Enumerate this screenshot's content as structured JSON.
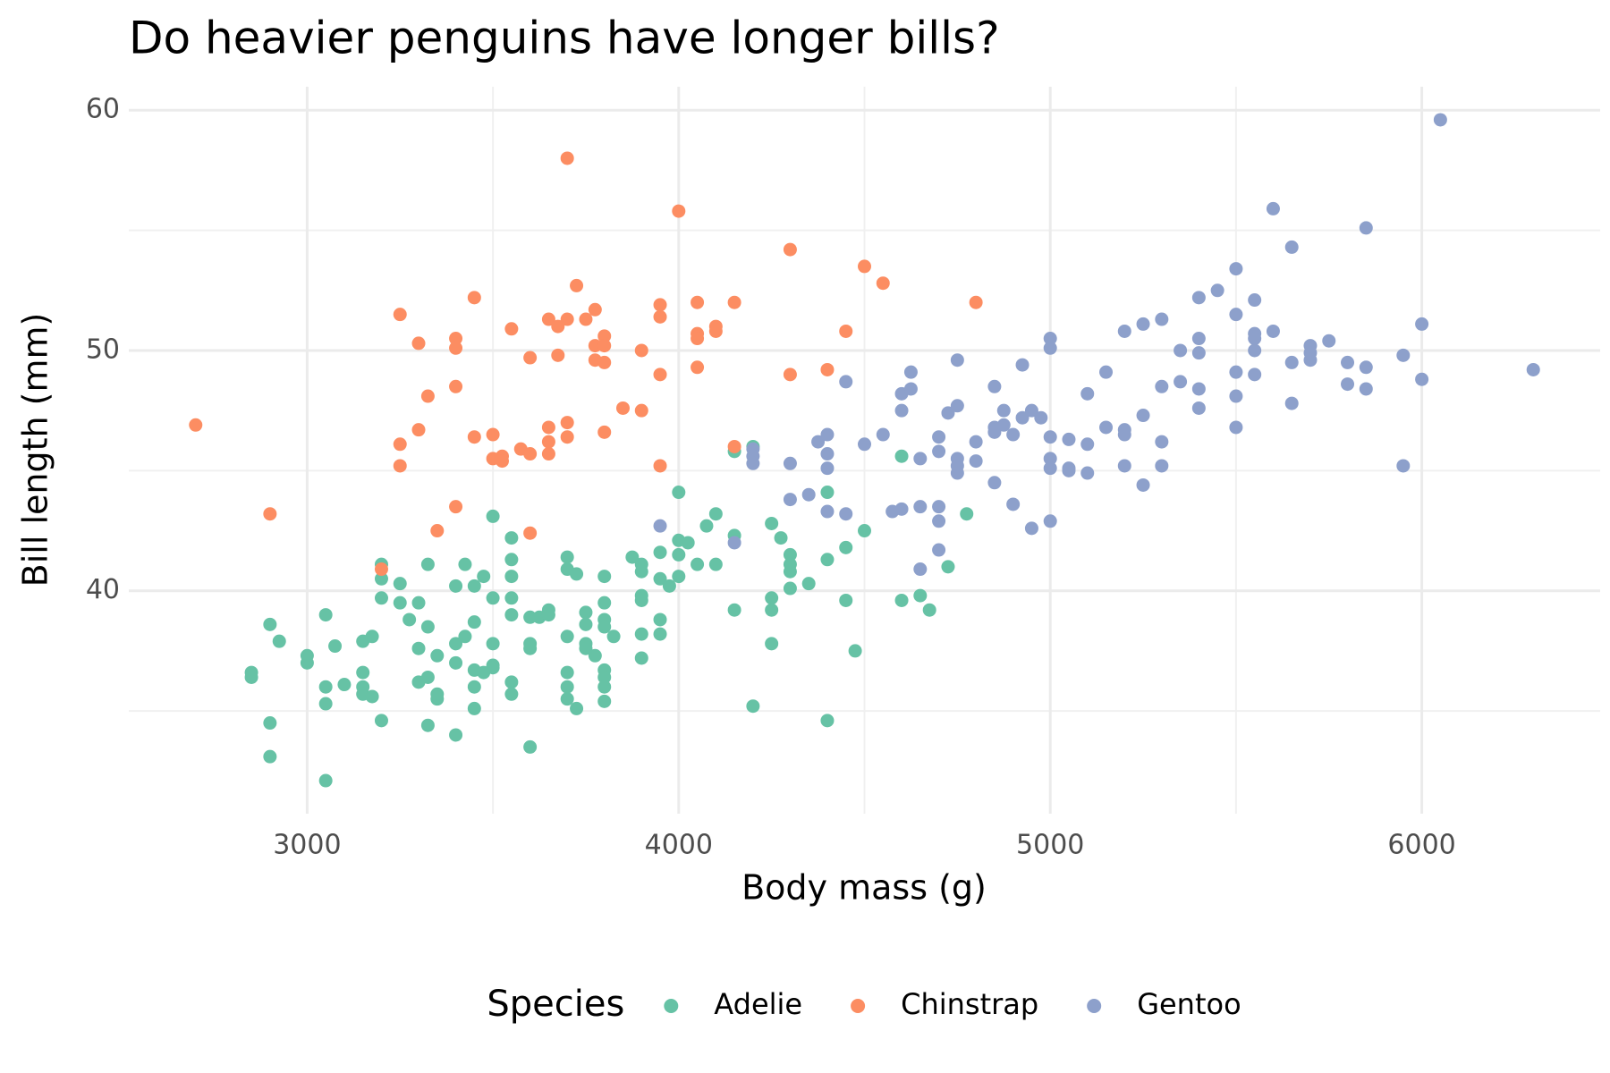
{
  "chart_data": {
    "type": "scatter",
    "title": "Do heavier penguins have longer bills?",
    "x_label": "Body mass (g)",
    "y_label": "Bill length (mm)",
    "legend_title": "Species",
    "legend_position": "bottom",
    "grid": true,
    "xlim": [
      2520,
      6480
    ],
    "xticks": [
      3000,
      4000,
      5000,
      6000
    ],
    "x_minor_grid": [
      3500,
      4500,
      5500
    ],
    "ylim": [
      30.725,
      60.975
    ],
    "yticks": [
      40,
      50,
      60
    ],
    "y_minor_grid": [
      35,
      45,
      55
    ],
    "series": [
      {
        "name": "Adelie",
        "color": "#66c2a5",
        "x": [
          2850,
          2850,
          2900,
          2900,
          2900,
          2925,
          3000,
          3000,
          3050,
          3050,
          3050,
          3050,
          3075,
          3100,
          3150,
          3150,
          3150,
          3150,
          3175,
          3175,
          3200,
          3200,
          3200,
          3200,
          3250,
          3250,
          3275,
          3300,
          3300,
          3300,
          3325,
          3325,
          3325,
          3325,
          3350,
          3350,
          3350,
          3400,
          3400,
          3400,
          3400,
          3425,
          3425,
          3450,
          3450,
          3450,
          3450,
          3450,
          3475,
          3475,
          3500,
          3500,
          3500,
          3500,
          3500,
          3550,
          3550,
          3550,
          3550,
          3550,
          3550,
          3550,
          3600,
          3600,
          3600,
          3600,
          3625,
          3650,
          3650,
          3700,
          3700,
          3700,
          3700,
          3700,
          3700,
          3725,
          3725,
          3750,
          3750,
          3750,
          3750,
          3775,
          3800,
          3800,
          3800,
          3800,
          3800,
          3800,
          3800,
          3800,
          3825,
          3875,
          3900,
          3900,
          3900,
          3900,
          3900,
          3900,
          3950,
          3950,
          3950,
          3950,
          3975,
          4000,
          4000,
          4000,
          4000,
          4025,
          4050,
          4075,
          4100,
          4100,
          4150,
          4150,
          4150,
          4200,
          4200,
          4250,
          4250,
          4250,
          4250,
          4275,
          4300,
          4300,
          4300,
          4300,
          4350,
          4400,
          4400,
          4400,
          4450,
          4450,
          4475,
          4500,
          4600,
          4600,
          4650,
          4675,
          4725,
          4775
        ],
        "values": [
          36.6,
          36.4,
          38.6,
          34.5,
          33.1,
          37.9,
          37.3,
          37.0,
          39.0,
          36.0,
          35.3,
          32.1,
          37.7,
          36.1,
          37.9,
          36.6,
          36.0,
          35.7,
          38.1,
          35.6,
          41.1,
          40.5,
          39.7,
          34.6,
          40.3,
          39.5,
          38.8,
          39.5,
          37.6,
          36.2,
          41.1,
          38.5,
          36.4,
          34.4,
          37.3,
          35.7,
          35.5,
          40.2,
          37.8,
          37.0,
          34.0,
          41.1,
          38.1,
          40.2,
          38.7,
          36.7,
          36.0,
          35.1,
          40.6,
          36.6,
          43.1,
          39.7,
          37.8,
          36.9,
          36.8,
          42.2,
          41.3,
          40.6,
          39.7,
          39.0,
          36.2,
          35.7,
          38.9,
          37.8,
          37.6,
          33.5,
          38.9,
          39.2,
          39.0,
          41.4,
          40.9,
          38.1,
          36.6,
          36.0,
          35.5,
          40.7,
          35.1,
          39.1,
          38.6,
          37.8,
          37.6,
          37.3,
          40.6,
          39.5,
          38.8,
          38.5,
          36.7,
          36.4,
          36.0,
          35.4,
          38.1,
          41.4,
          41.1,
          40.8,
          39.8,
          39.6,
          38.2,
          37.2,
          41.6,
          40.5,
          38.8,
          38.2,
          40.2,
          44.1,
          42.1,
          41.5,
          40.6,
          42.0,
          41.1,
          42.7,
          43.2,
          41.1,
          45.8,
          42.3,
          39.2,
          46.0,
          35.2,
          42.8,
          39.7,
          39.2,
          37.8,
          42.2,
          41.5,
          41.1,
          40.8,
          40.1,
          40.3,
          44.1,
          41.3,
          34.6,
          41.8,
          39.6,
          37.5,
          42.5,
          45.6,
          39.6,
          39.8,
          39.2,
          41.0,
          43.2
        ]
      },
      {
        "name": "Chinstrap",
        "color": "#fc8d62",
        "x": [
          2700,
          2900,
          3200,
          3250,
          3250,
          3250,
          3300,
          3300,
          3325,
          3350,
          3400,
          3400,
          3400,
          3400,
          3450,
          3450,
          3500,
          3500,
          3525,
          3525,
          3550,
          3575,
          3600,
          3600,
          3600,
          3650,
          3650,
          3650,
          3650,
          3675,
          3675,
          3700,
          3700,
          3700,
          3700,
          3725,
          3750,
          3775,
          3775,
          3775,
          3800,
          3800,
          3800,
          3800,
          3850,
          3900,
          3900,
          3950,
          3950,
          3950,
          3950,
          4000,
          4050,
          4050,
          4050,
          4050,
          4100,
          4100,
          4150,
          4150,
          4300,
          4300,
          4400,
          4450,
          4500,
          4550,
          4800
        ],
        "values": [
          46.9,
          43.2,
          40.9,
          51.5,
          46.1,
          45.2,
          50.3,
          46.7,
          48.1,
          42.5,
          50.5,
          50.1,
          48.5,
          43.5,
          52.2,
          46.4,
          46.5,
          45.5,
          45.6,
          45.4,
          50.9,
          45.9,
          49.7,
          45.7,
          42.4,
          51.3,
          46.8,
          46.2,
          45.7,
          51.0,
          49.8,
          58.0,
          51.3,
          47.0,
          46.4,
          52.7,
          51.3,
          51.7,
          50.2,
          49.6,
          50.6,
          50.2,
          49.5,
          46.6,
          47.6,
          50.0,
          47.5,
          51.9,
          51.4,
          49.0,
          45.2,
          55.8,
          52.0,
          50.7,
          50.5,
          49.3,
          51.0,
          50.8,
          52.0,
          46.0,
          54.2,
          49.0,
          49.2,
          50.8,
          53.5,
          52.8,
          52.0
        ]
      },
      {
        "name": "Gentoo",
        "color": "#8da0cb",
        "x": [
          3950,
          4150,
          4200,
          4200,
          4200,
          4300,
          4300,
          4350,
          4375,
          4400,
          4400,
          4400,
          4400,
          4450,
          4450,
          4500,
          4550,
          4575,
          4600,
          4600,
          4600,
          4625,
          4625,
          4650,
          4650,
          4650,
          4700,
          4700,
          4700,
          4700,
          4700,
          4725,
          4750,
          4750,
          4750,
          4750,
          4750,
          4800,
          4800,
          4850,
          4850,
          4850,
          4850,
          4875,
          4875,
          4900,
          4900,
          4925,
          4925,
          4950,
          4950,
          4975,
          5000,
          5000,
          5000,
          5000,
          5000,
          5000,
          5050,
          5050,
          5050,
          5100,
          5100,
          5100,
          5150,
          5150,
          5200,
          5200,
          5200,
          5200,
          5250,
          5250,
          5250,
          5300,
          5300,
          5300,
          5300,
          5350,
          5350,
          5400,
          5400,
          5400,
          5400,
          5400,
          5450,
          5500,
          5500,
          5500,
          5500,
          5500,
          5550,
          5550,
          5550,
          5550,
          5550,
          5600,
          5600,
          5650,
          5650,
          5650,
          5700,
          5700,
          5700,
          5750,
          5800,
          5800,
          5850,
          5850,
          5850,
          5950,
          5950,
          6000,
          6000,
          6050,
          6300
        ],
        "values": [
          42.7,
          42.0,
          45.9,
          45.6,
          45.3,
          45.3,
          43.8,
          44.0,
          46.2,
          46.5,
          45.7,
          45.1,
          43.3,
          48.7,
          43.2,
          46.1,
          46.5,
          43.3,
          48.2,
          47.5,
          43.4,
          49.1,
          48.4,
          45.5,
          43.5,
          40.9,
          46.4,
          45.8,
          43.5,
          42.9,
          41.7,
          47.4,
          49.6,
          47.7,
          45.5,
          45.2,
          44.9,
          46.2,
          45.4,
          48.5,
          46.8,
          46.6,
          44.5,
          47.5,
          46.9,
          46.5,
          43.6,
          49.4,
          47.2,
          47.5,
          42.6,
          47.2,
          50.5,
          50.1,
          46.4,
          45.5,
          45.1,
          42.9,
          46.3,
          45.1,
          45.0,
          48.2,
          46.1,
          44.9,
          49.1,
          46.8,
          50.8,
          46.7,
          46.5,
          45.2,
          51.1,
          47.3,
          44.4,
          51.3,
          48.5,
          46.2,
          45.2,
          50.0,
          48.7,
          52.2,
          50.5,
          49.9,
          48.4,
          47.6,
          52.5,
          53.4,
          51.5,
          49.1,
          48.1,
          46.8,
          52.1,
          50.7,
          50.5,
          50.0,
          49.0,
          55.9,
          50.8,
          54.3,
          49.5,
          47.8,
          50.2,
          49.9,
          49.6,
          50.4,
          49.5,
          48.6,
          55.1,
          49.3,
          48.4,
          49.8,
          45.2,
          51.1,
          48.8,
          59.6,
          49.2
        ]
      }
    ]
  }
}
